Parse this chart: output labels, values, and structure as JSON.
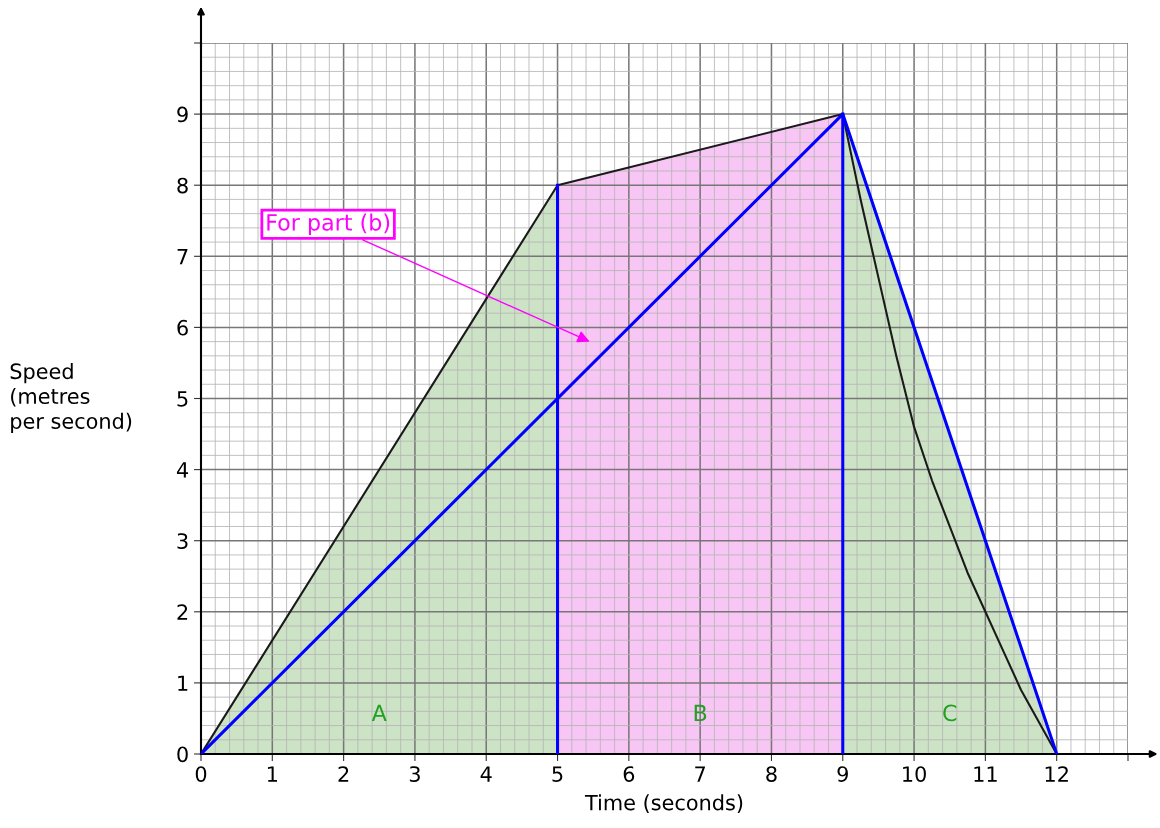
{
  "chart_data": {
    "type": "line",
    "xlabel": "Time (seconds)",
    "ylabel": "Speed\n(metres\nper second)",
    "xlim": [
      0,
      13
    ],
    "ylim": [
      0,
      10
    ],
    "xticks": [
      0,
      1,
      2,
      3,
      4,
      5,
      6,
      7,
      8,
      9,
      10,
      11,
      12,
      {
        "value": 13,
        "label": null
      }
    ],
    "yticks": [
      0,
      1,
      2,
      3,
      4,
      5,
      6,
      7,
      8,
      9,
      {
        "value": 10,
        "label": null
      }
    ],
    "grid": true,
    "series": [
      {
        "type": "area",
        "color": "#cde3c6",
        "x": [
          0,
          5
        ],
        "values": [
          0,
          8
        ]
      },
      {
        "type": "area",
        "color": "#f8c6f4",
        "x": [
          5,
          9
        ],
        "values": [
          8,
          9
        ]
      },
      {
        "type": "area",
        "color": "#cde3c6",
        "x": [
          9,
          12
        ],
        "values": [
          9,
          0
        ]
      },
      {
        "color": "#1a1a1a",
        "x": [
          0,
          5,
          9,
          9.25,
          9.5,
          9.75,
          10,
          10.25,
          10.5,
          10.75,
          11,
          11.25,
          11.5,
          11.75,
          12
        ],
        "values": [
          0,
          8,
          9,
          7.8,
          6.7,
          5.6,
          4.6,
          3.85,
          3.2,
          2.55,
          2,
          1.45,
          0.9,
          0.45,
          0
        ]
      },
      {
        "color": "#0000ff",
        "x": [
          0,
          9,
          12
        ],
        "values": [
          0,
          9,
          0
        ]
      },
      {
        "color": "#0000fe",
        "x": [
          5,
          5,
          5
        ],
        "values": [
          0,
          4,
          8
        ]
      },
      {
        "color": "#0000fd",
        "x": [
          9,
          9,
          9
        ],
        "values": [
          0,
          4.5,
          9
        ]
      }
    ],
    "annotations": [
      "For part (b)",
      "A",
      "B",
      "C"
    ]
  }
}
